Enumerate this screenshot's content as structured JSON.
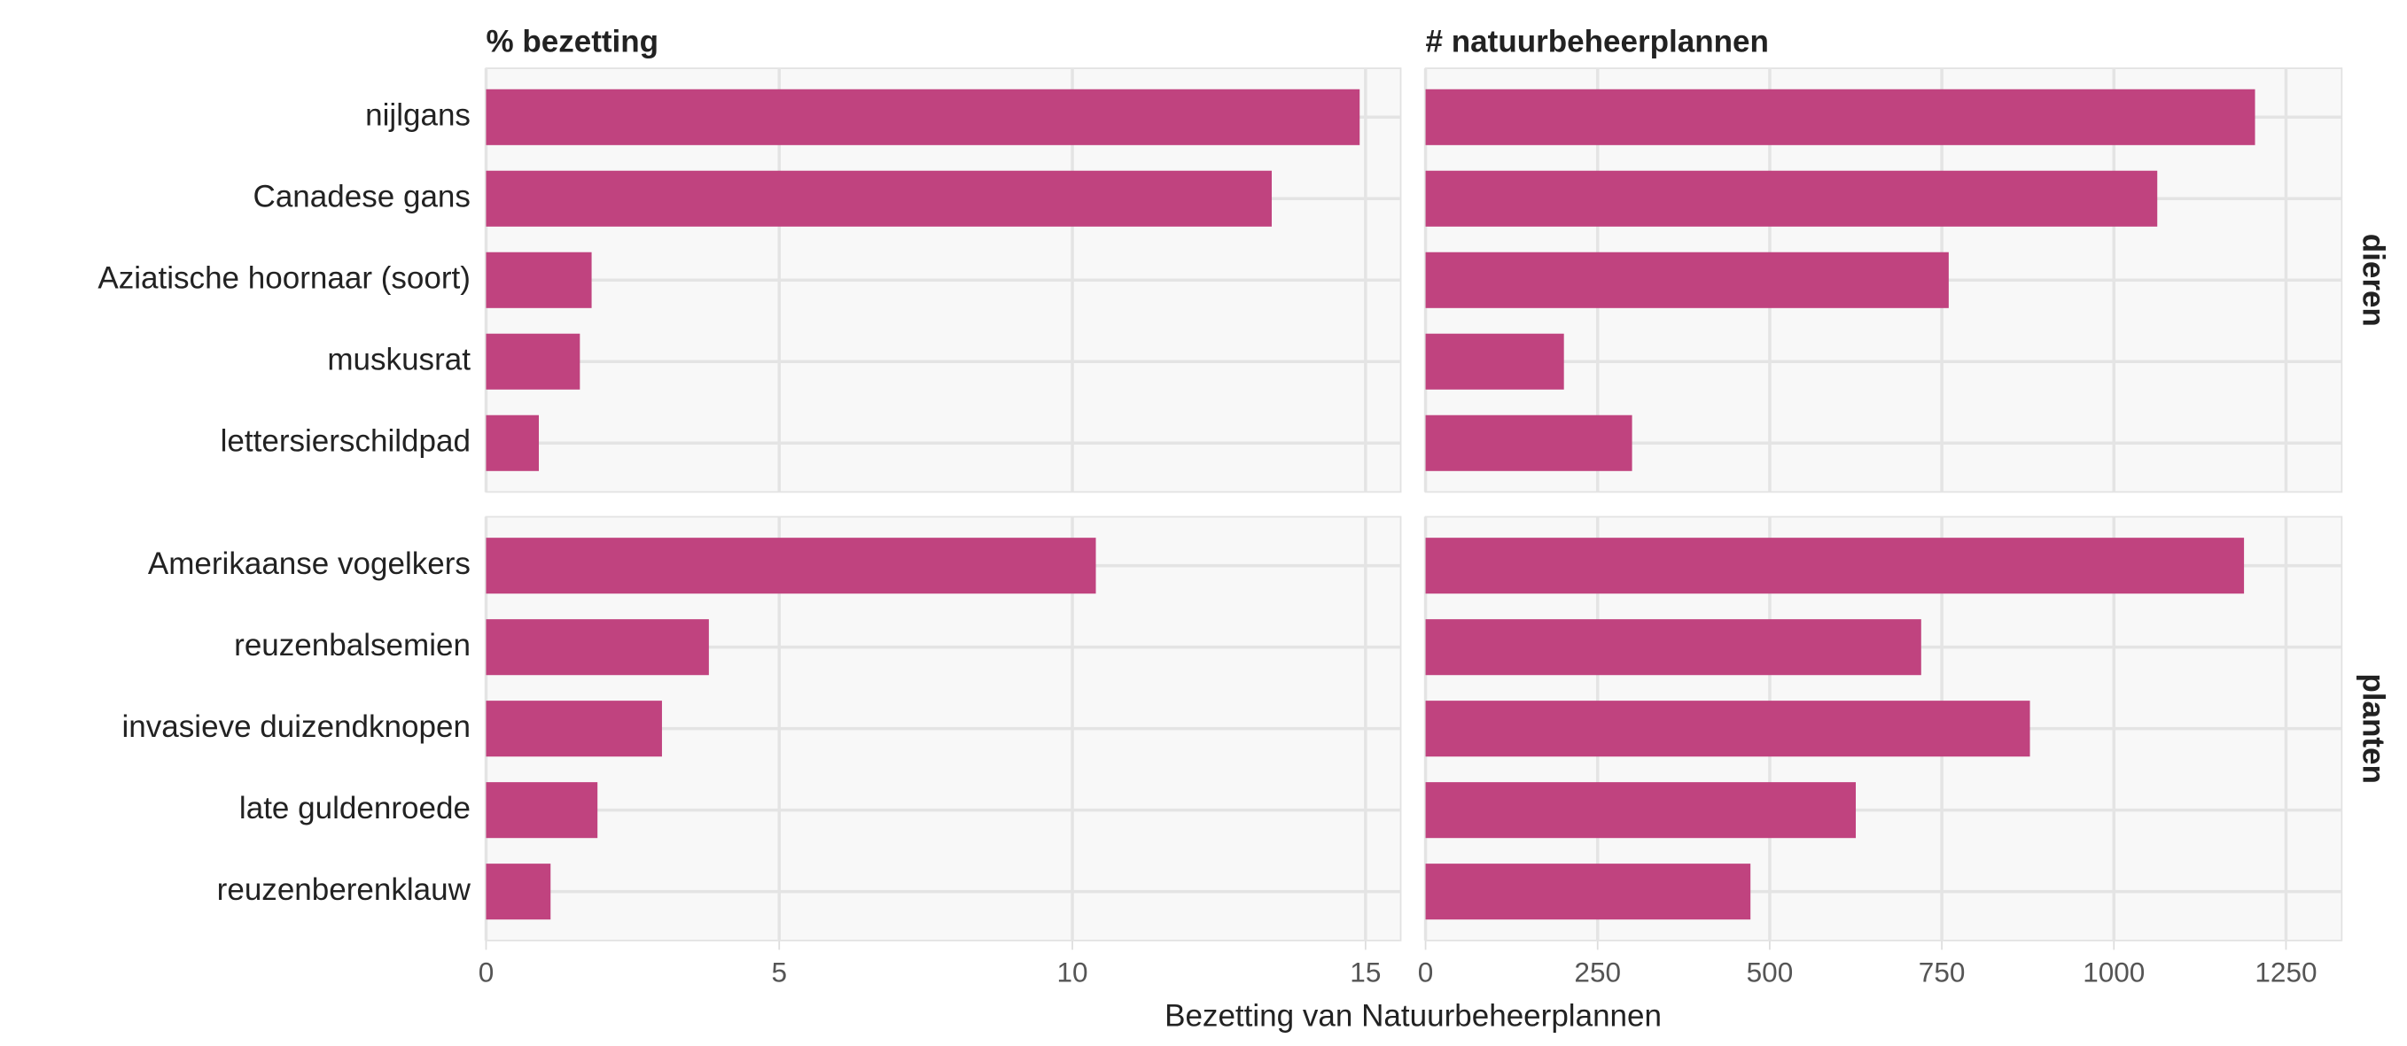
{
  "chart_data": {
    "type": "bar",
    "color": "#c0437f",
    "grid": true,
    "xlabel": "Bezetting van Natuurbeheerplannen",
    "columns": [
      {
        "title": "% bezetting",
        "xlim": [
          0,
          15.6
        ],
        "xticks": [
          0,
          5,
          10,
          15
        ]
      },
      {
        "title": "# natuurbeheerplannen",
        "xlim": [
          0,
          1331
        ],
        "xticks": [
          0,
          250,
          500,
          750,
          1000,
          1250
        ]
      }
    ],
    "rows": [
      {
        "label": "dieren",
        "categories": [
          "nijlgans",
          "Canadese gans",
          "Aziatische hoornaar (soort)",
          "muskusrat",
          "lettersierschildpad"
        ],
        "values": [
          [
            14.9,
            13.4,
            1.8,
            1.6,
            0.9
          ],
          [
            1205,
            1063,
            760,
            201,
            300
          ]
        ]
      },
      {
        "label": "planten",
        "categories": [
          "Amerikaanse vogelkers",
          "reuzenbalsemien",
          "invasieve duizendknopen",
          "late guldenroede",
          "reuzenberenklauw"
        ],
        "values": [
          [
            10.4,
            3.8,
            3.0,
            1.9,
            1.1
          ],
          [
            1189,
            720,
            878,
            625,
            472
          ]
        ]
      }
    ]
  }
}
